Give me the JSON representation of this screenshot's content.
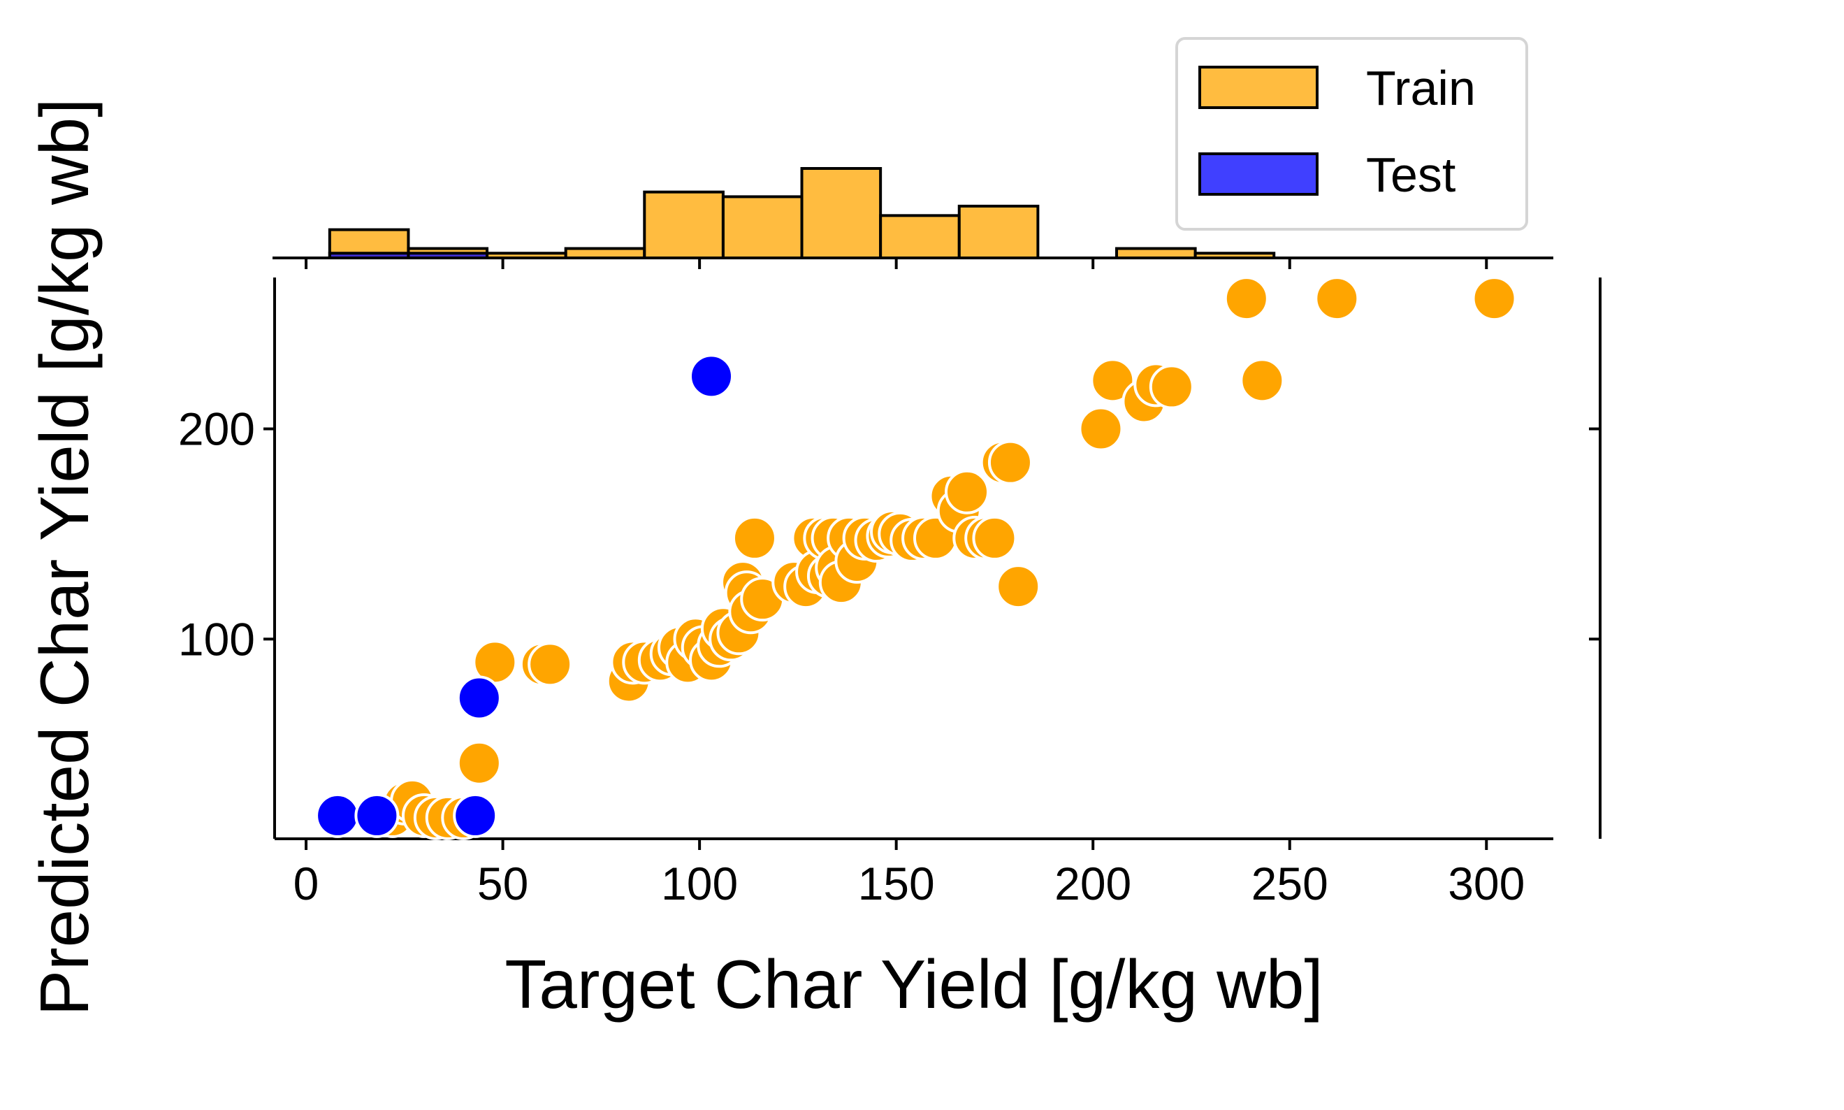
{
  "chart_data": {
    "type": "scatter",
    "xlabel": "Target Char Yield [g/kg wb]",
    "ylabel": "Predicted Char Yield [g/kg wb]",
    "xlim": [
      -8,
      317
    ],
    "ylim": [
      5,
      272
    ],
    "xticks": [
      0,
      50,
      100,
      150,
      200,
      250,
      300
    ],
    "yticks": [
      100,
      200
    ],
    "grid": false,
    "legend": {
      "placement": "top-right",
      "entries": [
        "Train",
        "Test"
      ]
    },
    "colors": {
      "Train": "#FFA500",
      "Test": "#0000FF"
    },
    "series": [
      {
        "name": "Train",
        "points": [
          [
            22,
            16
          ],
          [
            25,
            22
          ],
          [
            27,
            23
          ],
          [
            30,
            16
          ],
          [
            33,
            15
          ],
          [
            36,
            15
          ],
          [
            40,
            15
          ],
          [
            44,
            41
          ],
          [
            48,
            89
          ],
          [
            60,
            88
          ],
          [
            62,
            88
          ],
          [
            82,
            80
          ],
          [
            83,
            89
          ],
          [
            86,
            89
          ],
          [
            90,
            90
          ],
          [
            93,
            93
          ],
          [
            95,
            96
          ],
          [
            97,
            89
          ],
          [
            99,
            100
          ],
          [
            101,
            96
          ],
          [
            103,
            90
          ],
          [
            105,
            97
          ],
          [
            106,
            105
          ],
          [
            108,
            100
          ],
          [
            110,
            103
          ],
          [
            111,
            127
          ],
          [
            112,
            122
          ],
          [
            113,
            113
          ],
          [
            114,
            148
          ],
          [
            116,
            119
          ],
          [
            124,
            127
          ],
          [
            127,
            125
          ],
          [
            129,
            148
          ],
          [
            130,
            132
          ],
          [
            132,
            148
          ],
          [
            133,
            130
          ],
          [
            134,
            148
          ],
          [
            135,
            134
          ],
          [
            136,
            127
          ],
          [
            138,
            148
          ],
          [
            140,
            137
          ],
          [
            142,
            148
          ],
          [
            145,
            147
          ],
          [
            148,
            149
          ],
          [
            149,
            151
          ],
          [
            151,
            150
          ],
          [
            154,
            147
          ],
          [
            157,
            148
          ],
          [
            160,
            148
          ],
          [
            164,
            168
          ],
          [
            166,
            161
          ],
          [
            168,
            170
          ],
          [
            170,
            148
          ],
          [
            173,
            148
          ],
          [
            175,
            148
          ],
          [
            177,
            184
          ],
          [
            179,
            184
          ],
          [
            181,
            125
          ],
          [
            202,
            200
          ],
          [
            205,
            223
          ],
          [
            213,
            213
          ],
          [
            216,
            221
          ],
          [
            220,
            220
          ],
          [
            239,
            262
          ],
          [
            243,
            223
          ],
          [
            262,
            262
          ],
          [
            302,
            262
          ]
        ]
      },
      {
        "name": "Test",
        "points": [
          [
            8,
            16
          ],
          [
            18,
            16
          ],
          [
            43,
            16
          ],
          [
            44,
            72
          ],
          [
            103,
            225
          ]
        ]
      }
    ],
    "histogram": {
      "bin_edges": [
        6,
        26,
        46,
        66,
        86,
        106,
        126,
        146,
        166,
        186,
        206,
        226,
        246,
        266,
        286,
        306
      ],
      "train_counts": [
        6,
        2,
        1,
        2,
        14,
        13,
        19,
        9,
        11,
        0,
        2,
        1,
        0,
        0,
        0
      ],
      "test_counts": [
        1,
        1,
        0,
        0,
        0,
        0,
        0,
        0,
        0,
        0,
        0,
        0,
        0,
        0,
        0
      ]
    }
  }
}
